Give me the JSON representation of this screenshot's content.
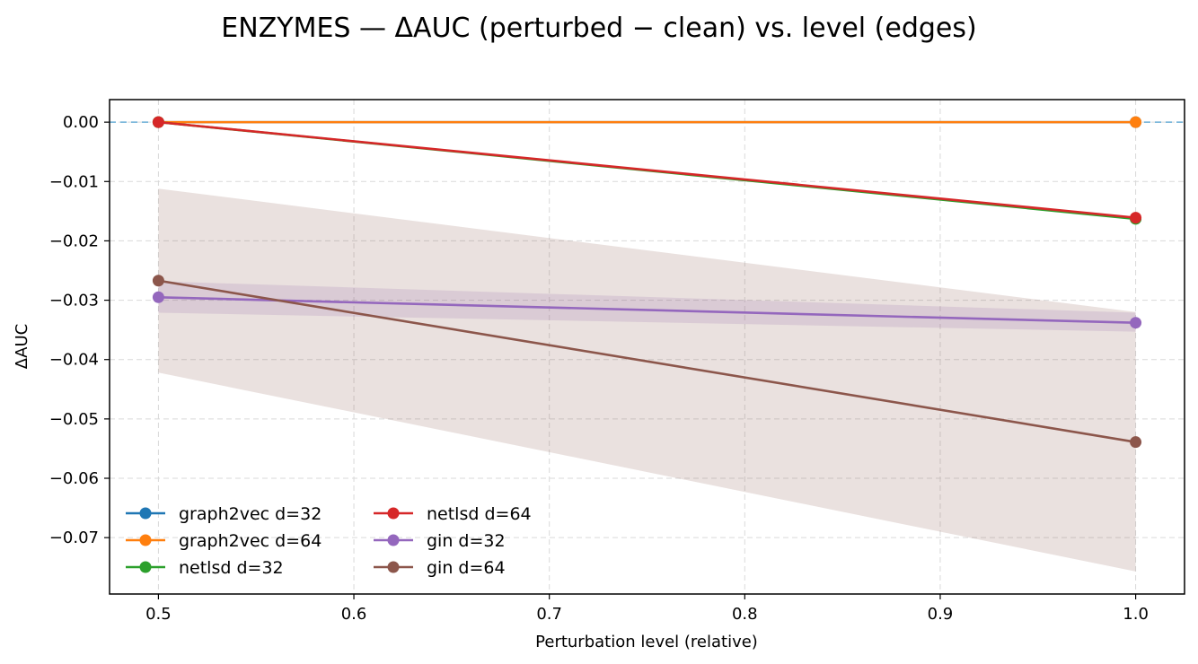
{
  "chart_data": {
    "type": "line",
    "title": "ENZYMES — ΔAUC (perturbed − clean) vs. level (edges)",
    "xlabel": "Perturbation level (relative)",
    "ylabel": "ΔAUC",
    "xlim": [
      0.475,
      1.025
    ],
    "ylim": [
      -0.0795,
      0.0038
    ],
    "x_ticks": [
      0.5,
      0.6,
      0.7,
      0.8,
      0.9,
      1.0
    ],
    "x_tick_labels": [
      "0.5",
      "0.6",
      "0.7",
      "0.8",
      "0.9",
      "1.0"
    ],
    "y_ticks": [
      0.0,
      -0.01,
      -0.02,
      -0.03,
      -0.04,
      -0.05,
      -0.06,
      -0.07
    ],
    "y_tick_labels": [
      "0.00",
      "−0.01",
      "−0.02",
      "−0.03",
      "−0.04",
      "−0.05",
      "−0.06",
      "−0.07"
    ],
    "grid": true,
    "reference_line": {
      "y": 0.0,
      "style": "dashed",
      "color": "#6aaed6"
    },
    "legend": {
      "location": "lower-left",
      "columns": 2
    },
    "x": [
      0.5,
      1.0
    ],
    "series": [
      {
        "name": "graph2vec d=32",
        "color": "#1f77b4",
        "values": [
          0.0,
          0.0
        ]
      },
      {
        "name": "graph2vec d=64",
        "color": "#ff7f0e",
        "values": [
          0.0,
          0.0
        ]
      },
      {
        "name": "netlsd d=32",
        "color": "#2ca02c",
        "values": [
          0.0,
          -0.0163
        ]
      },
      {
        "name": "netlsd d=64",
        "color": "#d62728",
        "values": [
          0.0,
          -0.0161
        ]
      },
      {
        "name": "gin d=32",
        "color": "#9467bd",
        "values": [
          -0.0295,
          -0.0338
        ],
        "band_lower": [
          -0.0321,
          -0.0353
        ],
        "band_upper": [
          -0.0268,
          -0.0321
        ]
      },
      {
        "name": "gin d=64",
        "color": "#8c564b",
        "values": [
          -0.0267,
          -0.0539
        ],
        "band_lower": [
          -0.0422,
          -0.0757
        ],
        "band_upper": [
          -0.0112,
          -0.032
        ]
      }
    ]
  }
}
